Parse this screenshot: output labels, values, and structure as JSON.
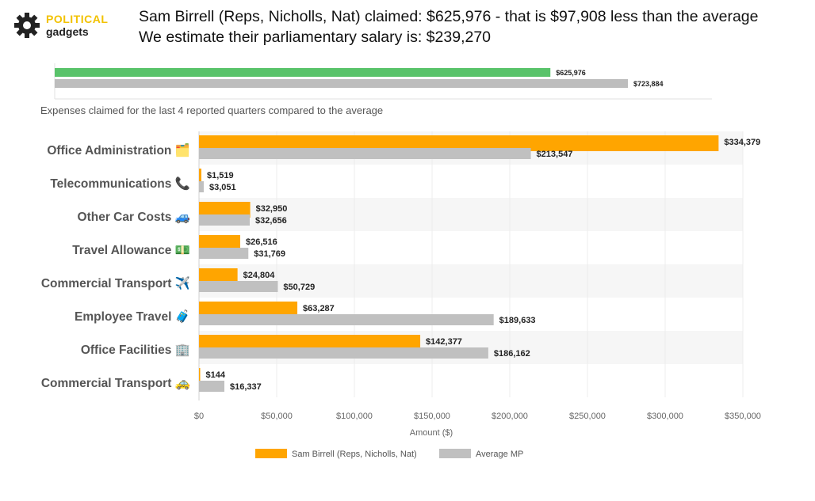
{
  "brand": {
    "line1": "POLITICAL",
    "line2": "gadgets",
    "icon": "gear-icon"
  },
  "header": {
    "line1": "Sam Birrell (Reps, Nicholls, Nat) claimed: $625,976 - that is $97,908 less than the average",
    "line2": "We estimate their parliamentary salary is: $239,270"
  },
  "summary_chart": {
    "type": "bar",
    "values": [
      625976,
      723884
    ],
    "labels": [
      "$625,976",
      "$723,884"
    ],
    "colors": [
      "#59c36a",
      "#bdbdbd"
    ],
    "xlim": [
      0,
      830000
    ]
  },
  "caption": "Expenses claimed for the last 4 reported quarters compared to the average",
  "chart_data": {
    "type": "bar",
    "orientation": "horizontal",
    "categories": [
      "Office Administration 🗂️",
      "Telecommunications 📞",
      "Other Car Costs 🚙",
      "Travel Allowance 💵",
      "Commercial Transport ✈️",
      "Employee Travel 🧳",
      "Office Facilities 🏢",
      "Commercial Transport 🚕"
    ],
    "series": [
      {
        "name": "Sam Birrell  (Reps, Nicholls, Nat)",
        "color": "#ffa500",
        "values": [
          334379,
          1519,
          32950,
          26516,
          24804,
          63287,
          142377,
          144
        ],
        "labels": [
          "$334,379",
          "$1,519",
          "$32,950",
          "$26,516",
          "$24,804",
          "$63,287",
          "$142,377",
          "$144"
        ]
      },
      {
        "name": "Average MP",
        "color": "#c0c0c0",
        "values": [
          213547,
          3051,
          32656,
          31769,
          50729,
          189633,
          186162,
          16337
        ],
        "labels": [
          "$213,547",
          "$3,051",
          "$32,656",
          "$31,769",
          "$50,729",
          "$189,633",
          "$186,162",
          "$16,337"
        ]
      }
    ],
    "xlabel": "Amount ($)",
    "xlim": [
      0,
      350000
    ],
    "xticks": [
      0,
      50000,
      100000,
      150000,
      200000,
      250000,
      300000,
      350000
    ],
    "xtick_labels": [
      "$0",
      "$50,000",
      "$100,000",
      "$150,000",
      "$200,000",
      "$250,000",
      "$300,000",
      "$350,000"
    ],
    "legend_position": "bottom"
  }
}
